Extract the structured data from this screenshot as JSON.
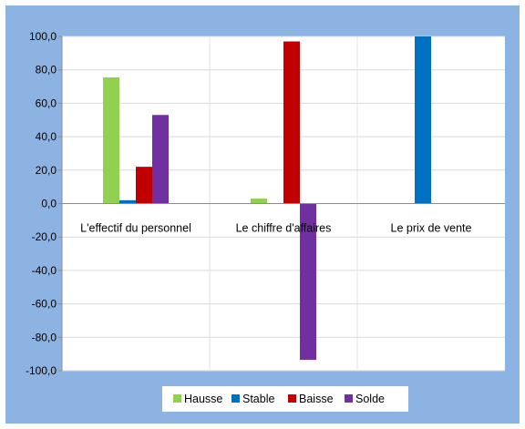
{
  "chart_data": {
    "type": "bar",
    "categories": [
      "L'effectif du personnel",
      "Le chiffre d'affaires",
      "Le prix de vente"
    ],
    "series": [
      {
        "name": "Hausse",
        "color": "#92d050",
        "values": [
          75.5,
          3.0,
          0
        ]
      },
      {
        "name": "Stable",
        "color": "#0070c0",
        "values": [
          2.0,
          0,
          100.0
        ]
      },
      {
        "name": "Baisse",
        "color": "#c00000",
        "values": [
          22.0,
          97.0,
          0
        ]
      },
      {
        "name": "Solde",
        "color": "#7030a0",
        "values": [
          53.0,
          -93.5,
          0
        ]
      }
    ],
    "title": "",
    "xlabel": "",
    "ylabel": "",
    "ylim": [
      -100,
      100
    ],
    "yticks": [
      100,
      80,
      60,
      40,
      20,
      0,
      -20,
      -40,
      -60,
      -80,
      -100
    ],
    "ytick_labels": [
      "100,0",
      "80,0",
      "60,0",
      "40,0",
      "20,0",
      "0,0",
      "-20,0",
      "-40,0",
      "-60,0",
      "-80,0",
      "-100,0"
    ],
    "grid": true,
    "legend_position": "bottom",
    "frame_color": "#8db3e2"
  }
}
